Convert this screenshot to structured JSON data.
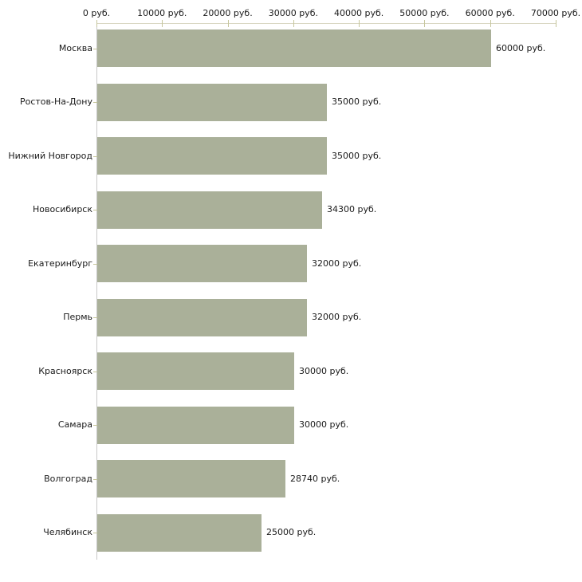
{
  "chart_data": {
    "type": "bar",
    "orientation": "horizontal",
    "title": "",
    "xlabel": "",
    "ylabel": "",
    "unit": "руб.",
    "categories": [
      "Москва",
      "Ростов-На-Дону",
      "Нижний Новгород",
      "Новосибирск",
      "Екатеринбург",
      "Пермь",
      "Красноярск",
      "Самара",
      "Волгоград",
      "Челябинск"
    ],
    "values": [
      60000,
      35000,
      35000,
      34300,
      32000,
      32000,
      30000,
      30000,
      28740,
      25000
    ],
    "value_labels": [
      "60000 руб.",
      "35000 руб.",
      "35000 руб.",
      "34300 руб.",
      "32000 руб.",
      "32000 руб.",
      "30000 руб.",
      "30000 руб.",
      "28740 руб.",
      "25000 руб."
    ],
    "x_ticks": [
      0,
      10000,
      20000,
      30000,
      40000,
      50000,
      60000,
      70000
    ],
    "x_tick_labels": [
      "0 руб.",
      "10000 руб.",
      "20000 руб.",
      "30000 руб.",
      "40000 руб.",
      "50000 руб.",
      "60000 руб.",
      "70000 руб."
    ],
    "xlim": [
      0,
      70000
    ],
    "grid": false,
    "legend": "none",
    "colors": {
      "bar_fill": "#aab099",
      "x_axis_line": "#d9d7c3",
      "y_axis_line": "#c8c8c8",
      "tick_mark": "#c6c69c",
      "text": "#1a1a1a",
      "background": "#ffffff"
    }
  }
}
